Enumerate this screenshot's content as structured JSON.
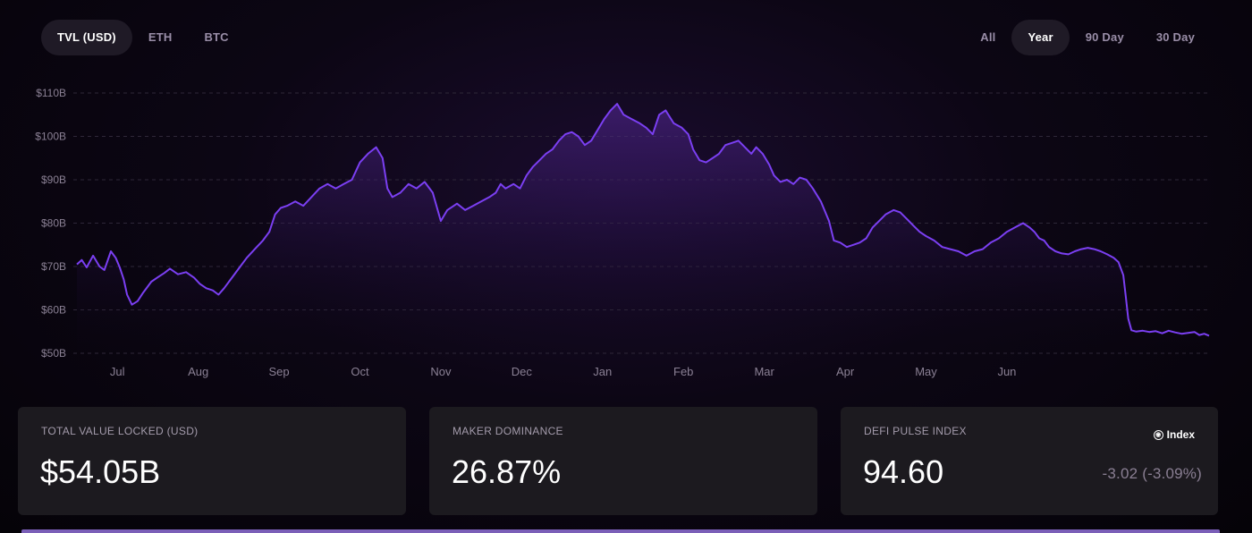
{
  "tabs_left": [
    {
      "label": "TVL (USD)",
      "active": true
    },
    {
      "label": "ETH",
      "active": false
    },
    {
      "label": "BTC",
      "active": false
    }
  ],
  "tabs_right": [
    {
      "label": "All",
      "active": false
    },
    {
      "label": "Year",
      "active": true
    },
    {
      "label": "90 Day",
      "active": false
    },
    {
      "label": "30 Day",
      "active": false
    }
  ],
  "chart_data": {
    "type": "area",
    "xlabel": "",
    "ylabel": "",
    "ylim": [
      50,
      110
    ],
    "y_ticks": [
      "$50B",
      "$60B",
      "$70B",
      "$80B",
      "$90B",
      "$100B",
      "$110B"
    ],
    "x_ticks": [
      "Jul",
      "Aug",
      "Sep",
      "Oct",
      "Nov",
      "Dec",
      "Jan",
      "Feb",
      "Mar",
      "Apr",
      "May",
      "Jun"
    ],
    "x_tick_positions": [
      0.5,
      1.5,
      2.5,
      3.5,
      4.5,
      5.5,
      6.5,
      7.5,
      8.5,
      9.5,
      10.5,
      11.5
    ],
    "grid": true,
    "line_color": "#7b3ff2",
    "series": [
      {
        "points": [
          [
            0.0,
            70.5
          ],
          [
            0.06,
            71.5
          ],
          [
            0.12,
            69.8
          ],
          [
            0.2,
            72.5
          ],
          [
            0.28,
            70
          ],
          [
            0.34,
            69.2
          ],
          [
            0.42,
            73.5
          ],
          [
            0.48,
            72
          ],
          [
            0.53,
            69.8
          ],
          [
            0.58,
            67
          ],
          [
            0.62,
            63.5
          ],
          [
            0.68,
            61.2
          ],
          [
            0.75,
            62
          ],
          [
            0.82,
            64
          ],
          [
            0.92,
            66.5
          ],
          [
            1.0,
            67.5
          ],
          [
            1.08,
            68.5
          ],
          [
            1.15,
            69.5
          ],
          [
            1.25,
            68.2
          ],
          [
            1.35,
            68.7
          ],
          [
            1.45,
            67.4
          ],
          [
            1.52,
            66
          ],
          [
            1.6,
            65
          ],
          [
            1.68,
            64.5
          ],
          [
            1.75,
            63.5
          ],
          [
            1.82,
            65
          ],
          [
            1.9,
            67
          ],
          [
            2.0,
            69.5
          ],
          [
            2.1,
            72
          ],
          [
            2.2,
            74
          ],
          [
            2.3,
            76
          ],
          [
            2.38,
            78
          ],
          [
            2.45,
            82
          ],
          [
            2.52,
            83.5
          ],
          [
            2.6,
            84
          ],
          [
            2.7,
            85
          ],
          [
            2.8,
            84
          ],
          [
            2.9,
            86
          ],
          [
            3.0,
            88
          ],
          [
            3.1,
            89
          ],
          [
            3.2,
            88
          ],
          [
            3.3,
            89
          ],
          [
            3.4,
            90
          ],
          [
            3.5,
            94
          ],
          [
            3.6,
            96
          ],
          [
            3.7,
            97.5
          ],
          [
            3.78,
            95
          ],
          [
            3.84,
            88
          ],
          [
            3.9,
            86
          ],
          [
            4.0,
            87
          ],
          [
            4.1,
            89
          ],
          [
            4.2,
            88
          ],
          [
            4.3,
            89.5
          ],
          [
            4.4,
            87
          ],
          [
            4.5,
            80.5
          ],
          [
            4.58,
            83
          ],
          [
            4.7,
            84.5
          ],
          [
            4.8,
            83
          ],
          [
            4.9,
            84
          ],
          [
            5.0,
            85
          ],
          [
            5.1,
            86
          ],
          [
            5.18,
            87
          ],
          [
            5.24,
            89
          ],
          [
            5.3,
            88
          ],
          [
            5.4,
            89
          ],
          [
            5.48,
            88
          ],
          [
            5.56,
            91
          ],
          [
            5.64,
            93
          ],
          [
            5.72,
            94.5
          ],
          [
            5.8,
            96
          ],
          [
            5.88,
            97
          ],
          [
            5.96,
            99
          ],
          [
            6.04,
            100.5
          ],
          [
            6.12,
            101
          ],
          [
            6.2,
            100
          ],
          [
            6.28,
            98
          ],
          [
            6.36,
            99
          ],
          [
            6.44,
            101.5
          ],
          [
            6.52,
            104
          ],
          [
            6.6,
            106
          ],
          [
            6.68,
            107.5
          ],
          [
            6.76,
            105
          ],
          [
            6.86,
            104
          ],
          [
            6.96,
            103
          ],
          [
            7.04,
            102
          ],
          [
            7.12,
            100.5
          ],
          [
            7.2,
            105
          ],
          [
            7.28,
            106
          ],
          [
            7.38,
            103
          ],
          [
            7.48,
            102
          ],
          [
            7.56,
            100.5
          ],
          [
            7.62,
            97
          ],
          [
            7.7,
            94.5
          ],
          [
            7.78,
            94
          ],
          [
            7.86,
            95
          ],
          [
            7.94,
            96
          ],
          [
            8.02,
            98
          ],
          [
            8.1,
            98.5
          ],
          [
            8.18,
            99
          ],
          [
            8.26,
            97.5
          ],
          [
            8.34,
            96
          ],
          [
            8.4,
            97.5
          ],
          [
            8.48,
            96
          ],
          [
            8.56,
            93.5
          ],
          [
            8.62,
            91
          ],
          [
            8.7,
            89.5
          ],
          [
            8.78,
            90
          ],
          [
            8.86,
            89
          ],
          [
            8.94,
            90.5
          ],
          [
            9.02,
            90
          ],
          [
            9.1,
            88
          ],
          [
            9.2,
            85
          ],
          [
            9.3,
            80.5
          ],
          [
            9.36,
            76
          ],
          [
            9.44,
            75.5
          ],
          [
            9.52,
            74.5
          ],
          [
            9.6,
            75
          ],
          [
            9.68,
            75.5
          ],
          [
            9.76,
            76.5
          ],
          [
            9.84,
            79
          ],
          [
            9.92,
            80.5
          ],
          [
            10.0,
            82
          ],
          [
            10.1,
            83
          ],
          [
            10.18,
            82.5
          ],
          [
            10.26,
            81
          ],
          [
            10.34,
            79.5
          ],
          [
            10.42,
            78
          ],
          [
            10.5,
            77
          ],
          [
            10.6,
            76
          ],
          [
            10.7,
            74.5
          ],
          [
            10.8,
            74
          ],
          [
            10.9,
            73.5
          ],
          [
            11.0,
            72.5
          ],
          [
            11.1,
            73.5
          ],
          [
            11.2,
            74
          ],
          [
            11.3,
            75.5
          ],
          [
            11.4,
            76.5
          ],
          [
            11.5,
            78
          ],
          [
            11.6,
            79
          ],
          [
            11.7,
            80
          ],
          [
            11.78,
            79
          ],
          [
            11.84,
            78
          ],
          [
            11.9,
            76.5
          ],
          [
            11.96,
            76
          ],
          [
            12.02,
            74.5
          ],
          [
            12.1,
            73.5
          ],
          [
            12.18,
            73
          ],
          [
            12.26,
            72.8
          ],
          [
            12.34,
            73.5
          ],
          [
            12.42,
            74
          ],
          [
            12.5,
            74.3
          ],
          [
            12.58,
            74
          ],
          [
            12.66,
            73.5
          ],
          [
            12.74,
            72.8
          ],
          [
            12.82,
            72
          ],
          [
            12.88,
            71
          ],
          [
            12.94,
            68
          ],
          [
            12.97,
            63
          ],
          [
            13.0,
            58
          ],
          [
            13.04,
            55.3
          ],
          [
            13.1,
            55
          ],
          [
            13.18,
            55.2
          ],
          [
            13.26,
            54.9
          ],
          [
            13.34,
            55.1
          ],
          [
            13.42,
            54.6
          ],
          [
            13.5,
            55.2
          ],
          [
            13.58,
            54.8
          ],
          [
            13.66,
            54.5
          ],
          [
            13.74,
            54.7
          ],
          [
            13.82,
            54.9
          ],
          [
            13.88,
            54.2
          ],
          [
            13.94,
            54.5
          ],
          [
            14.0,
            54.05
          ]
        ]
      }
    ]
  },
  "cards": [
    {
      "label": "TOTAL VALUE LOCKED (USD)",
      "value": "$54.05B"
    },
    {
      "label": "MAKER DOMINANCE",
      "value": "26.87%"
    },
    {
      "label": "DEFI PULSE INDEX",
      "value": "94.60",
      "link": "Index",
      "change": "-3.02  (-3.09%)"
    }
  ]
}
